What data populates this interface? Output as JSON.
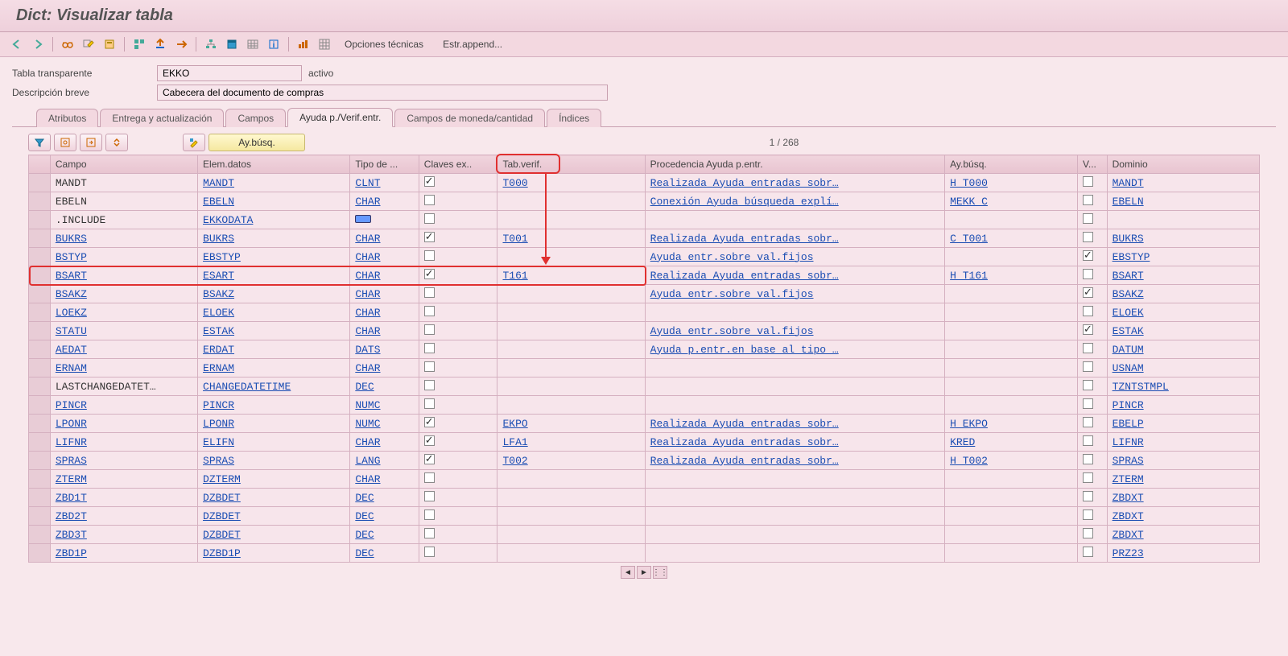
{
  "title": "Dict: Visualizar tabla",
  "toolbar_text": {
    "opciones": "Opciones técnicas",
    "estr": "Estr.append..."
  },
  "fields": {
    "tabla_label": "Tabla transparente",
    "tabla_value": "EKKO",
    "status": "activo",
    "desc_label": "Descripción breve",
    "desc_value": "Cabecera del documento de compras"
  },
  "tabs": {
    "atributos": "Atributos",
    "entrega": "Entrega y actualización",
    "campos": "Campos",
    "ayuda": "Ayuda p./Verif.entr.",
    "moneda": "Campos de moneda/cantidad",
    "indices": "Índices"
  },
  "sub_toolbar": {
    "aybusq_btn": "Ay.búsq.",
    "counter": "1  /  268"
  },
  "columns": {
    "campo": "Campo",
    "elem": "Elem.datos",
    "tipo": "Tipo de ...",
    "claves": "Claves ex..",
    "tabverif": "Tab.verif.",
    "proc": "Procedencia Ayuda p.entr.",
    "ayb": "Ay.búsq.",
    "v": "V...",
    "dom": "Dominio"
  },
  "rows": [
    {
      "campo": "MANDT",
      "elem": "MANDT",
      "tipo": "CLNT",
      "claves": true,
      "tabverif": "T000",
      "proc": "Realizada Ayuda entradas sobr…",
      "ayb": "H_T000",
      "v": false,
      "dom": "MANDT",
      "link_campo": false
    },
    {
      "campo": "EBELN",
      "elem": "EBELN",
      "tipo": "CHAR",
      "claves": false,
      "tabverif": "",
      "proc": "Conexión Ayuda búsqueda explí…",
      "ayb": "MEKK_C",
      "v": false,
      "dom": "EBELN",
      "link_campo": false
    },
    {
      "campo": ".INCLUDE",
      "elem": "EKKODATA",
      "tipo": "[icon]",
      "claves": false,
      "tabverif": "",
      "proc": "",
      "ayb": "",
      "v": false,
      "dom": "",
      "link_campo": false
    },
    {
      "campo": "BUKRS",
      "elem": "BUKRS",
      "tipo": "CHAR",
      "claves": true,
      "tabverif": "T001",
      "proc": "Realizada Ayuda entradas sobr…",
      "ayb": "C_T001",
      "v": false,
      "dom": "BUKRS",
      "link_campo": true
    },
    {
      "campo": "BSTYP",
      "elem": "EBSTYP",
      "tipo": "CHAR",
      "claves": false,
      "tabverif": "",
      "proc": "Ayuda entr.sobre val.fijos",
      "ayb": "",
      "v": true,
      "dom": "EBSTYP",
      "link_campo": true
    },
    {
      "campo": "BSART",
      "elem": "ESART",
      "tipo": "CHAR",
      "claves": true,
      "tabverif": "T161",
      "proc": "Realizada Ayuda entradas sobr…",
      "ayb": "H_T161",
      "v": false,
      "dom": "BSART",
      "link_campo": true,
      "hl": true
    },
    {
      "campo": "BSAKZ",
      "elem": "BSAKZ",
      "tipo": "CHAR",
      "claves": false,
      "tabverif": "",
      "proc": "Ayuda entr.sobre val.fijos",
      "ayb": "",
      "v": true,
      "dom": "BSAKZ",
      "link_campo": true
    },
    {
      "campo": "LOEKZ",
      "elem": "ELOEK",
      "tipo": "CHAR",
      "claves": false,
      "tabverif": "",
      "proc": "",
      "ayb": "",
      "v": false,
      "dom": "ELOEK",
      "link_campo": true
    },
    {
      "campo": "STATU",
      "elem": "ESTAK",
      "tipo": "CHAR",
      "claves": false,
      "tabverif": "",
      "proc": "Ayuda entr.sobre val.fijos",
      "ayb": "",
      "v": true,
      "dom": "ESTAK",
      "link_campo": true
    },
    {
      "campo": "AEDAT",
      "elem": "ERDAT",
      "tipo": "DATS",
      "claves": false,
      "tabverif": "",
      "proc": "Ayuda p.entr.en base al tipo …",
      "ayb": "",
      "v": false,
      "dom": "DATUM",
      "link_campo": true
    },
    {
      "campo": "ERNAM",
      "elem": "ERNAM",
      "tipo": "CHAR",
      "claves": false,
      "tabverif": "",
      "proc": "",
      "ayb": "",
      "v": false,
      "dom": "USNAM",
      "link_campo": true
    },
    {
      "campo": "LASTCHANGEDATET…",
      "elem": "CHANGEDATETIME",
      "tipo": "DEC",
      "claves": false,
      "tabverif": "",
      "proc": "",
      "ayb": "",
      "v": false,
      "dom": "TZNTSTMPL",
      "link_campo": false
    },
    {
      "campo": "PINCR",
      "elem": "PINCR",
      "tipo": "NUMC",
      "claves": false,
      "tabverif": "",
      "proc": "",
      "ayb": "",
      "v": false,
      "dom": "PINCR",
      "link_campo": true
    },
    {
      "campo": "LPONR",
      "elem": "LPONR",
      "tipo": "NUMC",
      "claves": true,
      "tabverif": "EKPO",
      "proc": "Realizada Ayuda entradas sobr…",
      "ayb": "H_EKPO",
      "v": false,
      "dom": "EBELP",
      "link_campo": true
    },
    {
      "campo": "LIFNR",
      "elem": "ELIFN",
      "tipo": "CHAR",
      "claves": true,
      "tabverif": "LFA1",
      "proc": "Realizada Ayuda entradas sobr…",
      "ayb": "KRED",
      "v": false,
      "dom": "LIFNR",
      "link_campo": true
    },
    {
      "campo": "SPRAS",
      "elem": "SPRAS",
      "tipo": "LANG",
      "claves": true,
      "tabverif": "T002",
      "proc": "Realizada Ayuda entradas sobr…",
      "ayb": "H_T002",
      "v": false,
      "dom": "SPRAS",
      "link_campo": true
    },
    {
      "campo": "ZTERM",
      "elem": "DZTERM",
      "tipo": "CHAR",
      "claves": false,
      "tabverif": "",
      "proc": "",
      "ayb": "",
      "v": false,
      "dom": "ZTERM",
      "link_campo": true
    },
    {
      "campo": "ZBD1T",
      "elem": "DZBDET",
      "tipo": "DEC",
      "claves": false,
      "tabverif": "",
      "proc": "",
      "ayb": "",
      "v": false,
      "dom": "ZBDXT",
      "link_campo": true
    },
    {
      "campo": "ZBD2T",
      "elem": "DZBDET",
      "tipo": "DEC",
      "claves": false,
      "tabverif": "",
      "proc": "",
      "ayb": "",
      "v": false,
      "dom": "ZBDXT",
      "link_campo": true
    },
    {
      "campo": "ZBD3T",
      "elem": "DZBDET",
      "tipo": "DEC",
      "claves": false,
      "tabverif": "",
      "proc": "",
      "ayb": "",
      "v": false,
      "dom": "ZBDXT",
      "link_campo": true
    },
    {
      "campo": "ZBD1P",
      "elem": "DZBD1P",
      "tipo": "DEC",
      "claves": false,
      "tabverif": "",
      "proc": "",
      "ayb": "",
      "v": false,
      "dom": "PRZ23",
      "link_campo": true
    }
  ],
  "colors": {
    "bg": "#f8e8ec",
    "red_annot": "#e03030",
    "link": "#1a4db3"
  }
}
